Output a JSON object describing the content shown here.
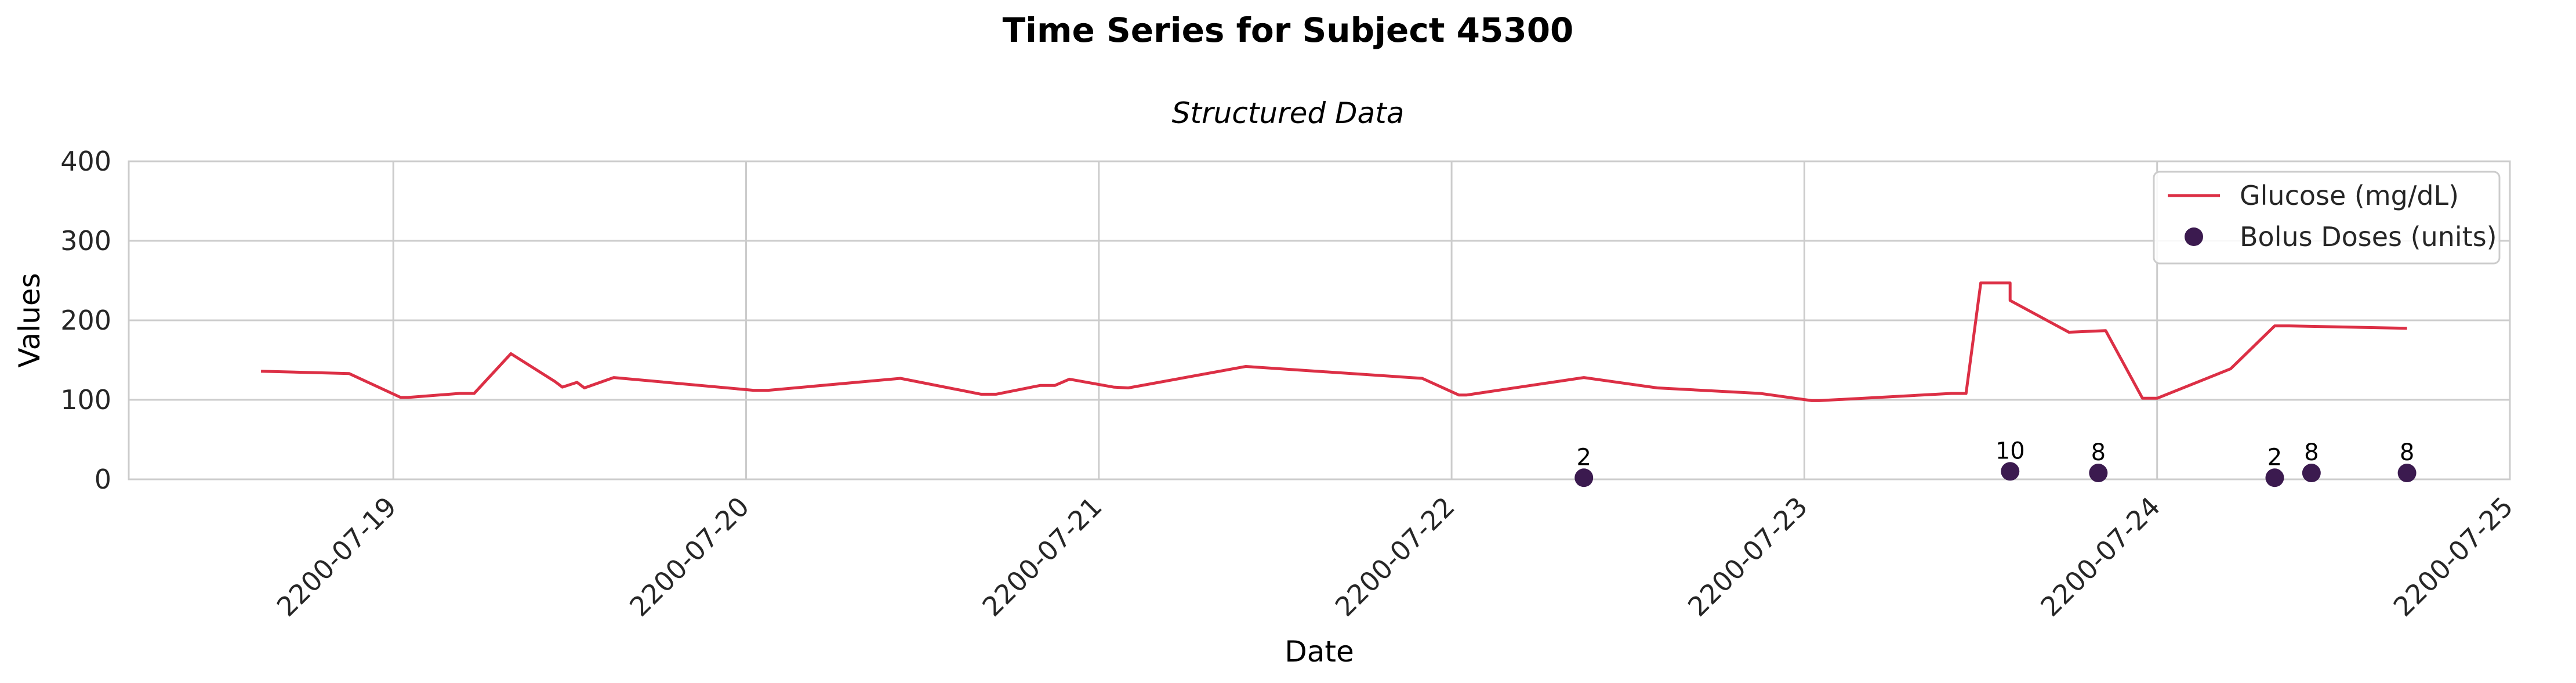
{
  "chart_data": {
    "type": "line",
    "title": "Time Series for Subject 45300",
    "subtitle": "Structured Data",
    "xlabel": "Date",
    "ylabel": "Values",
    "ylim": [
      0,
      400
    ],
    "yticks": [
      0,
      100,
      200,
      300,
      400
    ],
    "xlim": [
      "2200-07-18 06:00",
      "2200-07-25 00:00"
    ],
    "xticks": [
      "2200-07-19",
      "2200-07-20",
      "2200-07-21",
      "2200-07-22",
      "2200-07-23",
      "2200-07-24",
      "2200-07-25"
    ],
    "grid": true,
    "legend_position": "top-right",
    "colors": {
      "glucose": "#dc2f45",
      "bolus": "#3b1a4f"
    },
    "series": [
      {
        "name": "Glucose (mg/dL)",
        "type": "line",
        "x": [
          "2200-07-18 15:00",
          "2200-07-18 21:00",
          "2200-07-19 00:30",
          "2200-07-19 01:00",
          "2200-07-19 04:30",
          "2200-07-19 05:30",
          "2200-07-19 08:00",
          "2200-07-19 11:00",
          "2200-07-19 11:30",
          "2200-07-19 12:30",
          "2200-07-19 13:00",
          "2200-07-19 15:00",
          "2200-07-20 00:30",
          "2200-07-20 01:30",
          "2200-07-20 10:30",
          "2200-07-20 16:00",
          "2200-07-20 17:00",
          "2200-07-20 20:00",
          "2200-07-20 21:00",
          "2200-07-20 22:00",
          "2200-07-21 01:00",
          "2200-07-21 02:00",
          "2200-07-21 10:00",
          "2200-07-21 22:00",
          "2200-07-22 00:30",
          "2200-07-22 01:00",
          "2200-07-22 09:00",
          "2200-07-22 14:00",
          "2200-07-22 21:00",
          "2200-07-23 00:30",
          "2200-07-23 01:00",
          "2200-07-23 10:00",
          "2200-07-23 11:00",
          "2200-07-23 12:00",
          "2200-07-23 14:00",
          "2200-07-23 14:00",
          "2200-07-23 18:00",
          "2200-07-23 20:30",
          "2200-07-23 23:00",
          "2200-07-24 00:00",
          "2200-07-24 05:00",
          "2200-07-24 08:00",
          "2200-07-24 09:00",
          "2200-07-24 17:00"
        ],
        "values": [
          136,
          133,
          103,
          103,
          108,
          108,
          158,
          123,
          116,
          122,
          115,
          128,
          112,
          112,
          127,
          107,
          107,
          118,
          118,
          126,
          116,
          115,
          142,
          127,
          106,
          106,
          128,
          115,
          108,
          99,
          99,
          108,
          108,
          247,
          247,
          225,
          185,
          187,
          102,
          102,
          139,
          193,
          193,
          190
        ]
      },
      {
        "name": "Bolus Doses (units)",
        "type": "scatter",
        "x": [
          "2200-07-22 09:00",
          "2200-07-23 14:00",
          "2200-07-23 20:00",
          "2200-07-24 08:00",
          "2200-07-24 10:30",
          "2200-07-24 17:00"
        ],
        "values": [
          2,
          10,
          8,
          2,
          8,
          8
        ],
        "labels": [
          "2",
          "10",
          "8",
          "2",
          "8",
          "8"
        ]
      }
    ]
  }
}
